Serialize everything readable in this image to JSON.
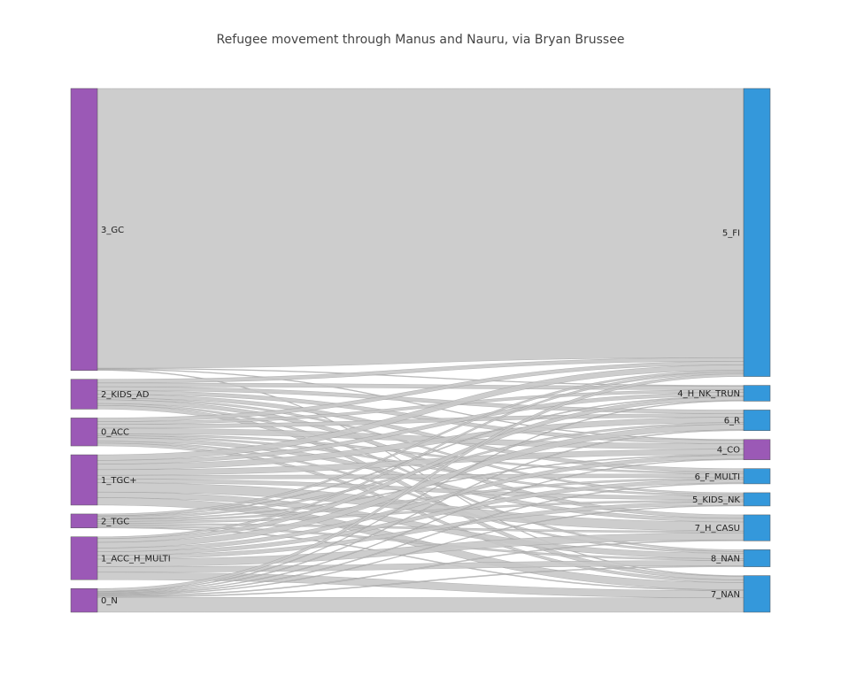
{
  "chart_data": {
    "type": "sankey",
    "title": "Refugee movement through Manus and Nauru, via Bryan Brussee",
    "colors": {
      "source_node": "#9b59b6",
      "target_node": "#3498db",
      "link": "#c8c8c8",
      "link_edge": "#888888",
      "node_border": "#555555"
    },
    "nodes": [
      {
        "id": "3_GC",
        "label": "3_GC",
        "side": "left",
        "color": "#9b59b6"
      },
      {
        "id": "2_KIDS_AD",
        "label": "2_KIDS_AD",
        "side": "left",
        "color": "#9b59b6"
      },
      {
        "id": "0_ACC",
        "label": "0_ACC",
        "side": "left",
        "color": "#9b59b6"
      },
      {
        "id": "1_TGC+",
        "label": "1_TGC+",
        "side": "left",
        "color": "#9b59b6"
      },
      {
        "id": "2_TGC",
        "label": "2_TGC",
        "side": "left",
        "color": "#9b59b6"
      },
      {
        "id": "1_ACC_H_MULTI",
        "label": "1_ACC_H_MULTI",
        "side": "left",
        "color": "#9b59b6"
      },
      {
        "id": "0_N",
        "label": "0_N",
        "side": "left",
        "color": "#9b59b6"
      },
      {
        "id": "5_FI",
        "label": "5_FI",
        "side": "right",
        "color": "#3498db"
      },
      {
        "id": "4_H_NK_TRUN",
        "label": "4_H_NK_TRUN",
        "side": "right",
        "color": "#3498db"
      },
      {
        "id": "6_R",
        "label": "6_R",
        "side": "right",
        "color": "#3498db"
      },
      {
        "id": "4_CO",
        "label": "4_CO",
        "side": "right",
        "color": "#9b59b6"
      },
      {
        "id": "6_F_MULTI",
        "label": "6_F_MULTI",
        "side": "right",
        "color": "#3498db"
      },
      {
        "id": "5_KIDS_NK",
        "label": "5_KIDS_NK",
        "side": "right",
        "color": "#3498db"
      },
      {
        "id": "7_H_CASU",
        "label": "7_H_CASU",
        "side": "right",
        "color": "#3498db"
      },
      {
        "id": "8_NAN",
        "label": "8_NAN",
        "side": "right",
        "color": "#3498db"
      },
      {
        "id": "7_NAN",
        "label": "7_NAN",
        "side": "right",
        "color": "#3498db"
      }
    ],
    "links": [
      {
        "source": "3_GC",
        "target": "5_FI",
        "value": 300
      },
      {
        "source": "3_GC",
        "target": "4_H_NK_TRUN",
        "value": 0.8
      },
      {
        "source": "3_GC",
        "target": "4_CO",
        "value": 0.8
      },
      {
        "source": "3_GC",
        "target": "7_NAN",
        "value": 0.8
      },
      {
        "source": "2_KIDS_AD",
        "target": "5_FI",
        "value": 4
      },
      {
        "source": "2_KIDS_AD",
        "target": "4_H_NK_TRUN",
        "value": 4
      },
      {
        "source": "2_KIDS_AD",
        "target": "6_R",
        "value": 4
      },
      {
        "source": "2_KIDS_AD",
        "target": "4_CO",
        "value": 4
      },
      {
        "source": "2_KIDS_AD",
        "target": "6_F_MULTI",
        "value": 4
      },
      {
        "source": "2_KIDS_AD",
        "target": "5_KIDS_NK",
        "value": 2
      },
      {
        "source": "2_KIDS_AD",
        "target": "7_H_CASU",
        "value": 4
      },
      {
        "source": "2_KIDS_AD",
        "target": "8_NAN",
        "value": 2
      },
      {
        "source": "2_KIDS_AD",
        "target": "7_NAN",
        "value": 4
      },
      {
        "source": "0_ACC",
        "target": "5_FI",
        "value": 4
      },
      {
        "source": "0_ACC",
        "target": "4_H_NK_TRUN",
        "value": 3
      },
      {
        "source": "0_ACC",
        "target": "6_R",
        "value": 4
      },
      {
        "source": "0_ACC",
        "target": "4_CO",
        "value": 6
      },
      {
        "source": "0_ACC",
        "target": "6_F_MULTI",
        "value": 2
      },
      {
        "source": "0_ACC",
        "target": "5_KIDS_NK",
        "value": 2
      },
      {
        "source": "0_ACC",
        "target": "7_H_CASU",
        "value": 4
      },
      {
        "source": "0_ACC",
        "target": "8_NAN",
        "value": 2
      },
      {
        "source": "0_ACC",
        "target": "7_NAN",
        "value": 3
      },
      {
        "source": "1_TGC+",
        "target": "5_FI",
        "value": 6
      },
      {
        "source": "1_TGC+",
        "target": "4_H_NK_TRUN",
        "value": 4
      },
      {
        "source": "1_TGC+",
        "target": "6_R",
        "value": 6
      },
      {
        "source": "1_TGC+",
        "target": "4_CO",
        "value": 6
      },
      {
        "source": "1_TGC+",
        "target": "6_F_MULTI",
        "value": 4
      },
      {
        "source": "1_TGC+",
        "target": "5_KIDS_NK",
        "value": 4
      },
      {
        "source": "1_TGC+",
        "target": "7_H_CASU",
        "value": 10
      },
      {
        "source": "1_TGC+",
        "target": "8_NAN",
        "value": 6
      },
      {
        "source": "1_TGC+",
        "target": "7_NAN",
        "value": 8
      },
      {
        "source": "2_TGC",
        "target": "5_FI",
        "value": 2
      },
      {
        "source": "2_TGC",
        "target": "4_H_NK_TRUN",
        "value": 1
      },
      {
        "source": "2_TGC",
        "target": "6_R",
        "value": 2
      },
      {
        "source": "2_TGC",
        "target": "4_CO",
        "value": 1
      },
      {
        "source": "2_TGC",
        "target": "6_F_MULTI",
        "value": 2
      },
      {
        "source": "2_TGC",
        "target": "5_KIDS_NK",
        "value": 2
      },
      {
        "source": "2_TGC",
        "target": "7_H_CASU",
        "value": 2
      },
      {
        "source": "2_TGC",
        "target": "8_NAN",
        "value": 2
      },
      {
        "source": "2_TGC",
        "target": "7_NAN",
        "value": 1
      },
      {
        "source": "1_ACC_H_MULTI",
        "target": "5_FI",
        "value": 2
      },
      {
        "source": "1_ACC_H_MULTI",
        "target": "4_H_NK_TRUN",
        "value": 4
      },
      {
        "source": "1_ACC_H_MULTI",
        "target": "6_R",
        "value": 6
      },
      {
        "source": "1_ACC_H_MULTI",
        "target": "4_CO",
        "value": 4
      },
      {
        "source": "1_ACC_H_MULTI",
        "target": "6_F_MULTI",
        "value": 4
      },
      {
        "source": "1_ACC_H_MULTI",
        "target": "5_KIDS_NK",
        "value": 4
      },
      {
        "source": "1_ACC_H_MULTI",
        "target": "7_H_CASU",
        "value": 8
      },
      {
        "source": "1_ACC_H_MULTI",
        "target": "8_NAN",
        "value": 6
      },
      {
        "source": "1_ACC_H_MULTI",
        "target": "7_NAN",
        "value": 8
      },
      {
        "source": "0_N",
        "target": "5_FI",
        "value": 3
      },
      {
        "source": "0_N",
        "target": "4_H_NK_TRUN",
        "value": 0.8
      },
      {
        "source": "0_N",
        "target": "6_R",
        "value": 1
      },
      {
        "source": "0_N",
        "target": "4_CO",
        "value": 0.8
      },
      {
        "source": "0_N",
        "target": "6_F_MULTI",
        "value": 1
      },
      {
        "source": "0_N",
        "target": "5_KIDS_NK",
        "value": 0.8
      },
      {
        "source": "0_N",
        "target": "7_H_CASU",
        "value": 1
      },
      {
        "source": "0_N",
        "target": "8_NAN",
        "value": 1
      },
      {
        "source": "0_N",
        "target": "7_NAN",
        "value": 16
      }
    ]
  }
}
